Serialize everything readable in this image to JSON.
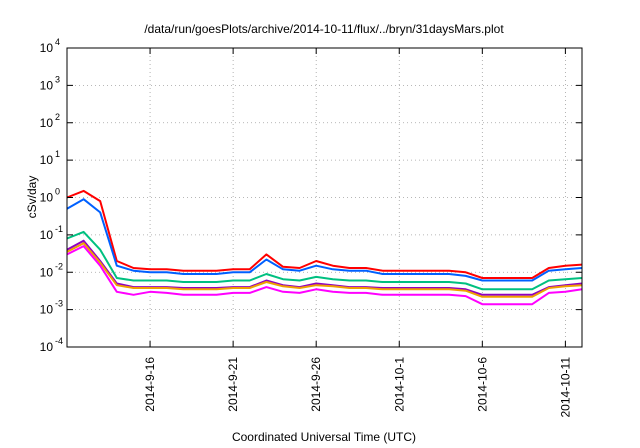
{
  "chart_data": {
    "type": "line",
    "title": "/data/run/goesPlots/archive/2014-10-11/flux/../bryn/31daysMars.plot",
    "xlabel": "Coordinated Universal Time (UTC)",
    "ylabel": "cSv/day",
    "y_scale": "log",
    "ylim_exponents": [
      -4,
      4
    ],
    "y_tick_base": "10",
    "y_tick_exponents": [
      "-4",
      "-3",
      "-2",
      "-1",
      "0",
      "1",
      "2",
      "3",
      "4"
    ],
    "x_range_days": [
      "2014-09-11",
      "2014-10-12"
    ],
    "x_tick_labels": [
      "2014-9-16",
      "2014-9-21",
      "2014-9-26",
      "2014-10-1",
      "2014-10-6",
      "2014-10-11"
    ],
    "x_tick_dates": [
      "2014-09-16",
      "2014-09-21",
      "2014-09-26",
      "2014-10-01",
      "2014-10-06",
      "2014-10-11"
    ],
    "grid": true,
    "legend": "none",
    "x_dates": [
      "2014-09-11",
      "2014-09-12",
      "2014-09-13",
      "2014-09-14",
      "2014-09-15",
      "2014-09-16",
      "2014-09-17",
      "2014-09-18",
      "2014-09-19",
      "2014-09-20",
      "2014-09-21",
      "2014-09-22",
      "2014-09-23",
      "2014-09-24",
      "2014-09-25",
      "2014-09-26",
      "2014-09-27",
      "2014-09-28",
      "2014-09-29",
      "2014-09-30",
      "2014-10-01",
      "2014-10-02",
      "2014-10-03",
      "2014-10-04",
      "2014-10-05",
      "2014-10-06",
      "2014-10-07",
      "2014-10-08",
      "2014-10-09",
      "2014-10-10",
      "2014-10-11",
      "2014-10-12"
    ],
    "series": [
      {
        "color": "#ff0000",
        "values": [
          1.0,
          1.5,
          0.8,
          0.02,
          0.013,
          0.012,
          0.012,
          0.011,
          0.011,
          0.011,
          0.012,
          0.012,
          0.03,
          0.014,
          0.013,
          0.02,
          0.015,
          0.013,
          0.013,
          0.011,
          0.011,
          0.011,
          0.011,
          0.011,
          0.01,
          0.007,
          0.007,
          0.007,
          0.007,
          0.013,
          0.015,
          0.016
        ]
      },
      {
        "color": "#0060ff",
        "values": [
          0.5,
          0.9,
          0.4,
          0.015,
          0.011,
          0.01,
          0.01,
          0.009,
          0.009,
          0.009,
          0.01,
          0.01,
          0.022,
          0.012,
          0.011,
          0.015,
          0.012,
          0.011,
          0.011,
          0.009,
          0.009,
          0.009,
          0.009,
          0.009,
          0.008,
          0.006,
          0.006,
          0.006,
          0.006,
          0.011,
          0.012,
          0.013
        ]
      },
      {
        "color": "#00c080",
        "values": [
          0.08,
          0.12,
          0.04,
          0.007,
          0.006,
          0.006,
          0.006,
          0.0055,
          0.0055,
          0.0055,
          0.006,
          0.006,
          0.009,
          0.0065,
          0.006,
          0.0075,
          0.0065,
          0.006,
          0.006,
          0.0055,
          0.0055,
          0.0055,
          0.0055,
          0.0055,
          0.005,
          0.0035,
          0.0035,
          0.0035,
          0.0035,
          0.006,
          0.0065,
          0.007
        ]
      },
      {
        "color": "#9000c0",
        "values": [
          0.04,
          0.07,
          0.02,
          0.005,
          0.004,
          0.004,
          0.004,
          0.0038,
          0.0038,
          0.0038,
          0.004,
          0.004,
          0.006,
          0.0045,
          0.004,
          0.005,
          0.0045,
          0.004,
          0.004,
          0.0038,
          0.0038,
          0.0038,
          0.0038,
          0.0038,
          0.0035,
          0.0025,
          0.0025,
          0.0025,
          0.0025,
          0.004,
          0.0045,
          0.005
        ]
      },
      {
        "color": "#f0a000",
        "values": [
          0.035,
          0.06,
          0.018,
          0.0045,
          0.0038,
          0.0038,
          0.0038,
          0.0035,
          0.0035,
          0.0035,
          0.0038,
          0.0038,
          0.0055,
          0.0042,
          0.0038,
          0.0045,
          0.0042,
          0.0038,
          0.0038,
          0.0035,
          0.0035,
          0.0035,
          0.0035,
          0.0035,
          0.0032,
          0.0022,
          0.0022,
          0.0022,
          0.0022,
          0.0038,
          0.0042,
          0.0045
        ]
      },
      {
        "color": "#ff00ff",
        "values": [
          0.03,
          0.05,
          0.015,
          0.003,
          0.0025,
          0.003,
          0.0028,
          0.0025,
          0.0025,
          0.0025,
          0.0028,
          0.0028,
          0.004,
          0.003,
          0.0028,
          0.0035,
          0.003,
          0.0028,
          0.0028,
          0.0025,
          0.0025,
          0.0025,
          0.0025,
          0.0025,
          0.0023,
          0.0014,
          0.0014,
          0.0014,
          0.0014,
          0.0028,
          0.003,
          0.0035
        ]
      }
    ]
  }
}
